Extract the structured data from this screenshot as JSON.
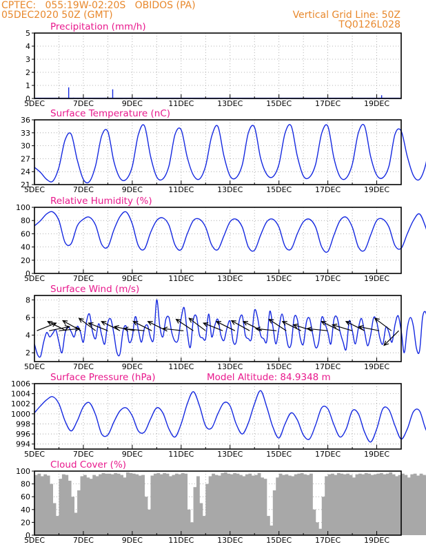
{
  "header": {
    "line1": "CPTEC:   055:19W-02:20S   OBIDOS (PA)",
    "line2": "05DEC2020 50Z (GMT)",
    "grid_note": "Vertical Grid Line: 50Z",
    "code": "TQ0126L028",
    "altitude": "Model Altitude: 84.9348 m",
    "colors": {
      "header": "#e8882c",
      "panel_title": "#e8188c",
      "series": "#1428e0",
      "wind_arrow": "#000000",
      "cloud": "#a8a8a8"
    }
  },
  "chart_data": [
    {
      "type": "bar",
      "title": "Precipitation (mm/h)",
      "x_ticks": [
        "5DEC",
        "7DEC",
        "9DEC",
        "11DEC",
        "13DEC",
        "15DEC",
        "17DEC",
        "19DEC"
      ],
      "ylim": [
        0,
        5
      ],
      "y_ticks": [
        "0",
        "1",
        "2",
        "3",
        "4",
        "5"
      ],
      "grid": "dotted",
      "baseline": 0.03,
      "values": [
        {
          "day": 6.4,
          "value": 0.85
        },
        {
          "day": 6.6,
          "value": 0.06
        },
        {
          "day": 8.2,
          "value": 0.7
        },
        {
          "day": 8.3,
          "value": 0.05
        },
        {
          "day": 19.2,
          "value": 0.25
        }
      ]
    },
    {
      "type": "line",
      "title": "Surface Temperature (nC)",
      "x_ticks": [
        "5DEC",
        "7DEC",
        "9DEC",
        "11DEC",
        "13DEC",
        "15DEC",
        "17DEC",
        "19DEC"
      ],
      "ylim": [
        21,
        36
      ],
      "y_ticks": [
        "21",
        "24",
        "27",
        "30",
        "33",
        "36"
      ],
      "grid": "dotted",
      "series": [
        {
          "start_day": 5.0,
          "step_days": 0.25,
          "values": [
            25,
            23.8,
            22.2,
            21.8,
            25,
            31.3,
            32.7,
            26.7,
            22.2,
            21.7,
            25.4,
            32.3,
            33.3,
            26.3,
            22.5,
            22.2,
            25.2,
            32.6,
            34.6,
            27.5,
            22.8,
            22.3,
            25.3,
            32.6,
            33.7,
            27.3,
            23.2,
            22.3,
            25.3,
            32.2,
            34.5,
            27.6,
            23.0,
            22.6,
            25.6,
            33.0,
            34.3,
            27.1,
            23.4,
            22.8,
            25.7,
            32.9,
            34.6,
            27.6,
            23.0,
            22.7,
            25.7,
            32.9,
            34.5,
            27.1,
            22.8,
            22.5,
            25.7,
            33.0,
            34.6,
            27.5,
            23.2,
            22.6,
            25.3,
            32.7,
            33.4,
            27.5,
            23.1,
            22.2,
            25.6,
            33.0,
            34.6,
            27.1,
            23.6,
            23.3,
            25.8,
            32.8,
            35.9,
            30.0,
            24.2,
            23.8,
            26.3,
            33.8,
            34.2,
            29.0,
            24.0
          ]
        }
      ]
    },
    {
      "type": "line",
      "title": "Relative Humidity (%)",
      "x_ticks": [
        "5DEC",
        "7DEC",
        "9DEC",
        "11DEC",
        "13DEC",
        "15DEC",
        "17DEC",
        "19DEC"
      ],
      "ylim": [
        0,
        100
      ],
      "y_ticks": [
        "0",
        "20",
        "40",
        "60",
        "80",
        "100"
      ],
      "grid": "dotted",
      "series": [
        {
          "start_day": 5.0,
          "step_days": 0.25,
          "values": [
            72,
            80,
            90,
            93,
            80,
            47,
            45,
            72,
            82,
            85,
            73,
            44,
            40,
            66,
            86,
            93,
            75,
            42,
            37,
            62,
            80,
            84,
            73,
            43,
            36,
            60,
            80,
            82,
            70,
            43,
            36,
            57,
            78,
            82,
            70,
            40,
            35,
            58,
            78,
            82,
            70,
            41,
            37,
            60,
            78,
            82,
            70,
            40,
            33,
            58,
            80,
            85,
            70,
            40,
            35,
            58,
            80,
            82,
            70,
            42,
            38,
            60,
            80,
            90,
            70,
            40,
            34,
            57,
            80,
            88,
            70,
            42,
            33,
            48,
            70,
            82,
            60,
            32,
            28,
            45,
            70,
            75,
            50,
            35,
            40
          ]
        }
      ]
    },
    {
      "type": "line",
      "title": "Surface Wind (m/s)",
      "x_ticks": [
        "5DEC",
        "7DEC",
        "9DEC",
        "11DEC",
        "13DEC",
        "15DEC",
        "17DEC",
        "19DEC"
      ],
      "ylim": [
        1,
        8.5
      ],
      "y_ticks": [
        "2",
        "4",
        "6",
        "8"
      ],
      "grid": "dotted",
      "series": [
        {
          "start_day": 5.0,
          "step_days": 0.125,
          "values": [
            3.0,
            1.8,
            1.6,
            3.2,
            4.3,
            3.8,
            4.2,
            4.6,
            3.2,
            2.0,
            4.2,
            5.0,
            4.4,
            3.8,
            5.0,
            4.4,
            3.2,
            5.5,
            6.4,
            4.4,
            3.6,
            5.3,
            4.0,
            3.0,
            5.4,
            5.8,
            4.1,
            2.0,
            1.9,
            4.5,
            5.0,
            3.2,
            3.8,
            6.1,
            4.6,
            3.2,
            4.8,
            5.1,
            3.7,
            3.6,
            8.0,
            5.0,
            3.8,
            5.8,
            6.0,
            4.2,
            3.3,
            3.5,
            5.9,
            7.1,
            4.3,
            2.6,
            5.8,
            6.1,
            4.0,
            3.7,
            3.6,
            6.4,
            3.8,
            5.1,
            5.8,
            4.0,
            3.4,
            4.8,
            5.6,
            3.3,
            3.2,
            5.6,
            6.2,
            4.0,
            3.6,
            3.6,
            6.8,
            6.0,
            4.0,
            3.6,
            3.3,
            6.7,
            5.0,
            3.0,
            4.8,
            6.4,
            4.8,
            2.8,
            3.0,
            6.0,
            5.8,
            3.6,
            3.0,
            5.5,
            5.9,
            4.2,
            2.6,
            3.2,
            6.0,
            5.4,
            4.3,
            3.0,
            5.8,
            6.0,
            4.4,
            3.2,
            2.4,
            5.6,
            4.5,
            3.0,
            4.8,
            5.9,
            4.4,
            2.8,
            4.0,
            6.0,
            5.5,
            3.7,
            3.0,
            4.9,
            4.3,
            3.2,
            5.2,
            6.2,
            4.5,
            2.0,
            4.8,
            6.0,
            5.0,
            2.5,
            2.2,
            6.0,
            6.6,
            5.0,
            3.0,
            3.2,
            5.5,
            6.4,
            4.2,
            2.4,
            4.0,
            5.0,
            4.5,
            1.9,
            2.1,
            4.4,
            6.3,
            4.8,
            3.6,
            4.2,
            5.8,
            4.6,
            3.0,
            3.4,
            5.4,
            3.8,
            2.7,
            2.0,
            3.8,
            5.0,
            4.5,
            6.6,
            4.8,
            3.0,
            3.0,
            4.5,
            3.8,
            2.0,
            1.8
          ]
        }
      ],
      "arrows": [
        {
          "day": 5.1,
          "dx": 1,
          "dy": -0.4
        },
        {
          "day": 5.6,
          "dx": 1,
          "dy": -0.2
        },
        {
          "day": 6.0,
          "dx": 1,
          "dy": -0.1
        },
        {
          "day": 6.3,
          "dx": -1,
          "dy": -0.5
        },
        {
          "day": 6.9,
          "dx": -0.9,
          "dy": -0.5
        },
        {
          "day": 7.5,
          "dx": -0.8,
          "dy": -0.6
        },
        {
          "day": 8.0,
          "dx": -1,
          "dy": -0.4
        },
        {
          "day": 8.5,
          "dx": -1,
          "dy": -0.5
        },
        {
          "day": 9.1,
          "dx": -1,
          "dy": -0.2
        },
        {
          "day": 9.5,
          "dx": -1,
          "dy": -0.1
        },
        {
          "day": 9.8,
          "dx": -1,
          "dy": -0.5
        },
        {
          "day": 10.4,
          "dx": -1,
          "dy": -0.5
        },
        {
          "day": 11.1,
          "dx": -1,
          "dy": -0.1
        },
        {
          "day": 11.5,
          "dx": -0.9,
          "dy": -0.6
        },
        {
          "day": 12.0,
          "dx": -0.8,
          "dy": -0.6
        },
        {
          "day": 12.7,
          "dx": -1,
          "dy": -0.4
        },
        {
          "day": 13.2,
          "dx": -1,
          "dy": -0.5
        },
        {
          "day": 13.8,
          "dx": -0.9,
          "dy": -0.5
        },
        {
          "day": 14.3,
          "dx": -1,
          "dy": -0.5
        },
        {
          "day": 14.9,
          "dx": -1,
          "dy": -0.1
        },
        {
          "day": 15.3,
          "dx": -0.9,
          "dy": -0.6
        },
        {
          "day": 15.9,
          "dx": -1,
          "dy": -0.5
        },
        {
          "day": 16.4,
          "dx": -1,
          "dy": -0.3
        },
        {
          "day": 17.0,
          "dx": -1,
          "dy": -0.1
        },
        {
          "day": 17.5,
          "dx": -1,
          "dy": -0.5
        },
        {
          "day": 18.0,
          "dx": -1,
          "dy": -0.3
        },
        {
          "day": 18.5,
          "dx": -1,
          "dy": -0.5
        },
        {
          "day": 19.1,
          "dx": -1,
          "dy": -0.2
        },
        {
          "day": 19.6,
          "dx": -0.8,
          "dy": -0.6
        },
        {
          "day": 19.9,
          "dx": -0.6,
          "dy": 0.6
        }
      ]
    },
    {
      "type": "line",
      "title": "Surface Pressure (hPa)",
      "x_ticks": [
        "5DEC",
        "7DEC",
        "9DEC",
        "11DEC",
        "13DEC",
        "15DEC",
        "17DEC",
        "19DEC"
      ],
      "ylim": [
        993,
        1006
      ],
      "y_ticks": [
        "994",
        "996",
        "998",
        "1000",
        "1002",
        "1004",
        "1006"
      ],
      "grid": "dotted",
      "series": [
        {
          "start_day": 5.0,
          "step_days": 0.25,
          "values": [
            1000.2,
            1001.6,
            1002.8,
            1003.4,
            1002.0,
            998.6,
            996.6,
            998.6,
            1001.4,
            1002.2,
            999.8,
            996.0,
            995.8,
            998.4,
            1000.6,
            1001.2,
            999.6,
            996.6,
            996.4,
            999.0,
            1001.2,
            1000.2,
            997.0,
            995.4,
            998.0,
            1002.0,
            1004.4,
            1001.6,
            997.6,
            997.2,
            1000.0,
            1002.2,
            1001.6,
            998.0,
            996.0,
            998.2,
            1002.0,
            1004.6,
            1001.4,
            997.4,
            995.2,
            998.0,
            1000.2,
            998.8,
            995.8,
            995.0,
            997.8,
            1001.2,
            1001.0,
            997.8,
            995.4,
            997.0,
            1000.6,
            1000.0,
            996.4,
            994.4,
            997.0,
            1001.0,
            1000.8,
            997.6,
            995.0,
            997.0,
            1000.4,
            1000.6,
            997.0,
            995.2,
            997.8,
            1001.6,
            1001.0,
            997.6,
            995.4,
            997.2,
            1000.2,
            1000.4,
            996.4,
            994.5,
            997.2,
            1001.2,
            1000.6,
            997.2,
            995.0,
            997.4,
            1000.0,
            999.4,
            995.6,
            994.2,
            996.2
          ]
        }
      ]
    },
    {
      "type": "area",
      "title": "Cloud Cover (%)",
      "x_ticks": [
        "5DEC",
        "7DEC",
        "9DEC",
        "11DEC",
        "13DEC",
        "15DEC",
        "17DEC",
        "19DEC"
      ],
      "ylim": [
        0,
        100
      ],
      "y_ticks": [
        "0",
        "20",
        "40",
        "60",
        "80",
        "100"
      ],
      "grid": "dotted",
      "series": [
        {
          "start_day": 5.0,
          "step_days": 0.125,
          "values": [
            94,
            96,
            92,
            95,
            93,
            80,
            50,
            30,
            88,
            95,
            94,
            85,
            60,
            35,
            70,
            92,
            94,
            90,
            88,
            94,
            92,
            95,
            97,
            96,
            96,
            95,
            97,
            96,
            94,
            90,
            98,
            97,
            96,
            95,
            93,
            94,
            60,
            40,
            93,
            96,
            97,
            95,
            97,
            96,
            92,
            94,
            96,
            95,
            97,
            96,
            40,
            20,
            75,
            92,
            50,
            30,
            80,
            92,
            96,
            94,
            93,
            97,
            98,
            96,
            95,
            97,
            96,
            94,
            92,
            95,
            96,
            93,
            94,
            97,
            90,
            88,
            30,
            15,
            70,
            90,
            96,
            94,
            95,
            93,
            92,
            95,
            96,
            97,
            95,
            94,
            96,
            40,
            20,
            10,
            60,
            92,
            95,
            96,
            94,
            97,
            96,
            95,
            96,
            94,
            90,
            95,
            96,
            95,
            97,
            96,
            94,
            95,
            96,
            97,
            95,
            96,
            98,
            95,
            92,
            94,
            96,
            94,
            90,
            95,
            96,
            93,
            96,
            94,
            92,
            95,
            96,
            97,
            95,
            93,
            94,
            97,
            96,
            95,
            94,
            96,
            95,
            93,
            94,
            92,
            96,
            95,
            94,
            93,
            96,
            95,
            92,
            94,
            96,
            95,
            96,
            94,
            95,
            96,
            97,
            95
          ]
        }
      ]
    }
  ]
}
